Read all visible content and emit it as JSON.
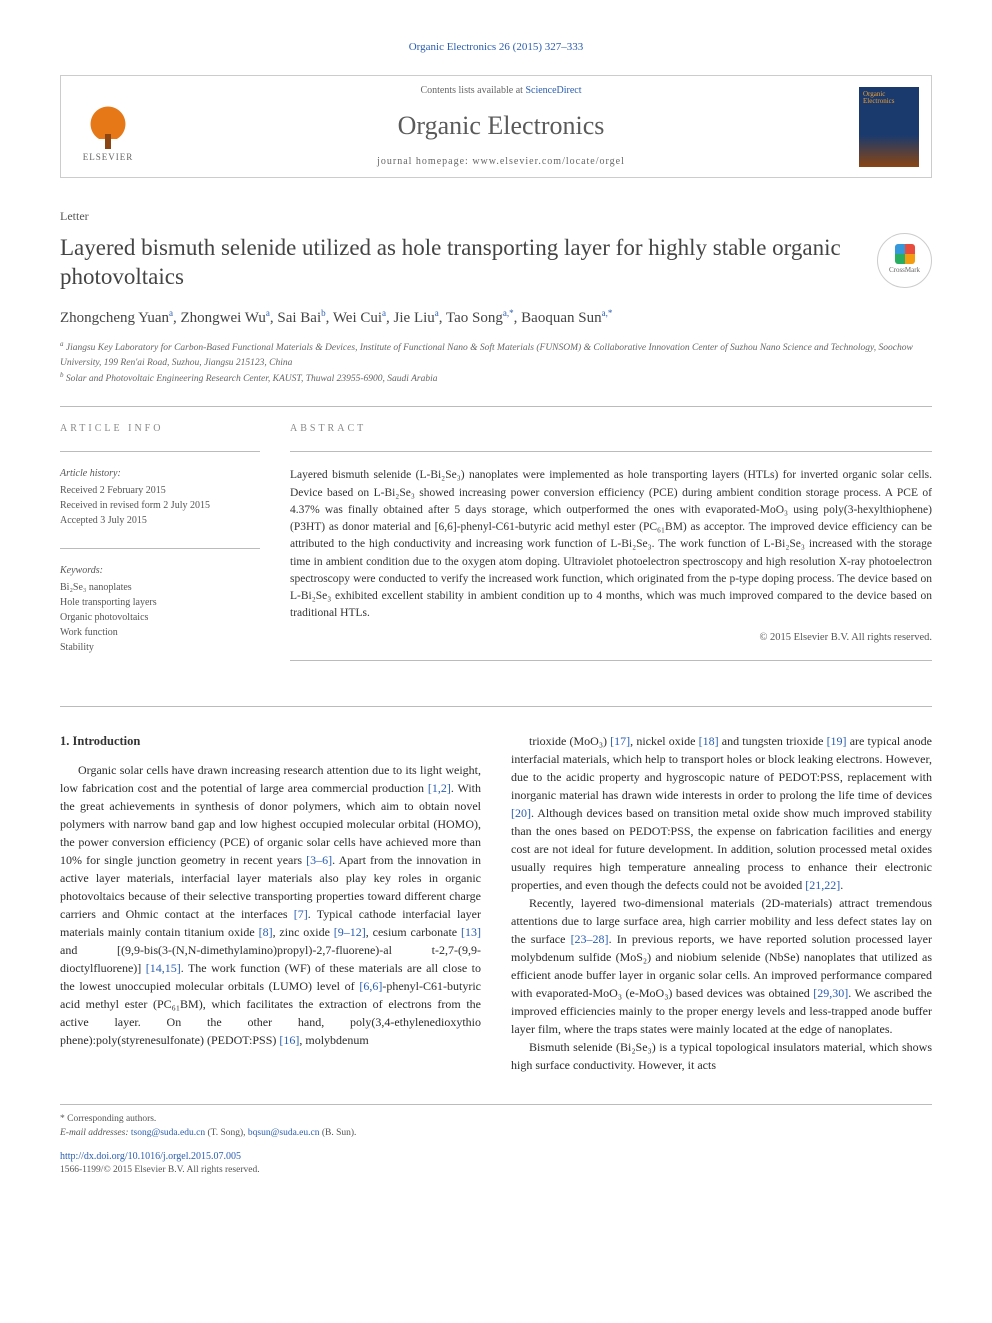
{
  "citation": "Organic Electronics 26 (2015) 327–333",
  "header": {
    "contents_prefix": "Contents lists available at ",
    "contents_link": "ScienceDirect",
    "journal_name": "Organic Electronics",
    "homepage_prefix": "journal homepage: ",
    "homepage_url": "www.elsevier.com/locate/orgel",
    "publisher": "ELSEVIER",
    "cover_text": "Organic Electronics"
  },
  "article_type": "Letter",
  "title": "Layered bismuth selenide utilized as hole transporting layer for highly stable organic photovoltaics",
  "crossmark_label": "CrossMark",
  "authors_html": "Zhongcheng Yuan<sup>a</sup>, Zhongwei Wu<sup>a</sup>, Sai Bai<sup>b</sup>, Wei Cui<sup>a</sup>, Jie Liu<sup>a</sup>, Tao Song<sup>a,*</sup>, Baoquan Sun<sup>a,*</sup>",
  "affiliations": {
    "a": "Jiangsu Key Laboratory for Carbon-Based Functional Materials & Devices, Institute of Functional Nano & Soft Materials (FUNSOM) & Collaborative Innovation Center of Suzhou Nano Science and Technology, Soochow University, 199 Ren'ai Road, Suzhou, Jiangsu 215123, China",
    "b": "Solar and Photovoltaic Engineering Research Center, KAUST, Thuwal 23955-6900, Saudi Arabia"
  },
  "info": {
    "heading": "ARTICLE INFO",
    "history_label": "Article history:",
    "received": "Received 2 February 2015",
    "revised": "Received in revised form 2 July 2015",
    "accepted": "Accepted 3 July 2015",
    "keywords_label": "Keywords:",
    "keywords": [
      "Bi₂Se₃ nanoplates",
      "Hole transporting layers",
      "Organic photovoltaics",
      "Work function",
      "Stability"
    ]
  },
  "abstract": {
    "heading": "ABSTRACT",
    "text": "Layered bismuth selenide (L-Bi₂Se₃) nanoplates were implemented as hole transporting layers (HTLs) for inverted organic solar cells. Device based on L-Bi₂Se₃ showed increasing power conversion efficiency (PCE) during ambient condition storage process. A PCE of 4.37% was finally obtained after 5 days storage, which outperformed the ones with evaporated-MoO₃ using poly(3-hexylthiophene) (P3HT) as donor material and [6,6]-phenyl-C61-butyric acid methyl ester (PC₆₁BM) as acceptor. The improved device efficiency can be attributed to the high conductivity and increasing work function of L-Bi₂Se₃. The work function of L-Bi₂Se₃ increased with the storage time in ambient condition due to the oxygen atom doping. Ultraviolet photoelectron spectroscopy and high resolution X-ray photoelectron spectroscopy were conducted to verify the increased work function, which originated from the p-type doping process. The device based on L-Bi₂Se₃ exhibited excellent stability in ambient condition up to 4 months, which was much improved compared to the device based on traditional HTLs.",
    "copyright": "© 2015 Elsevier B.V. All rights reserved."
  },
  "body": {
    "section1_heading": "1. Introduction",
    "para1": "Organic solar cells have drawn increasing research attention due to its light weight, low fabrication cost and the potential of large area commercial production [1,2]. With the great achievements in synthesis of donor polymers, which aim to obtain novel polymers with narrow band gap and low highest occupied molecular orbital (HOMO), the power conversion efficiency (PCE) of organic solar cells have achieved more than 10% for single junction geometry in recent years [3–6]. Apart from the innovation in active layer materials, interfacial layer materials also play key roles in organic photovoltaics because of their selective transporting properties toward different charge carriers and Ohmic contact at the interfaces [7]. Typical cathode interfacial layer materials mainly contain titanium oxide [8], zinc oxide [9–12], cesium carbonate [13] and [(9,9-bis(3-(N,N-dimethylamino)propyl)-2,7-fluorene)-al t-2,7-(9,9-dioctylfluorene)] [14,15]. The work function (WF) of these materials are all close to the lowest unoccupied molecular orbitals (LUMO) level of [6,6]-phenyl-C61-butyric acid methyl ester (PC₆₁BM), which facilitates the extraction of electrons from the active layer. On the other hand, poly(3,4-ethylenedioxythio phene):poly(styrenesulfonate) (PEDOT:PSS) [16], molybdenum",
    "para2": "trioxide (MoO₃) [17], nickel oxide [18] and tungsten trioxide [19] are typical anode interfacial materials, which help to transport holes or block leaking electrons. However, due to the acidic property and hygroscopic nature of PEDOT:PSS, replacement with inorganic material has drawn wide interests in order to prolong the life time of devices [20]. Although devices based on transition metal oxide show much improved stability than the ones based on PEDOT:PSS, the expense on fabrication facilities and energy cost are not ideal for future development. In addition, solution processed metal oxides usually requires high temperature annealing process to enhance their electronic properties, and even though the defects could not be avoided [21,22].",
    "para3": "Recently, layered two-dimensional materials (2D-materials) attract tremendous attentions due to large surface area, high carrier mobility and less defect states lay on the surface [23–28]. In previous reports, we have reported solution processed layer molybdenum sulfide (MoS₂) and niobium selenide (NbSe) nanoplates that utilized as efficient anode buffer layer in organic solar cells. An improved performance compared with evaporated-MoO₃ (e-MoO₃) based devices was obtained [29,30]. We ascribed the improved efficiencies mainly to the proper energy levels and less-trapped anode buffer layer film, where the traps states were mainly located at the edge of nanoplates.",
    "para4": "Bismuth selenide (Bi₂Se₃) is a typical topological insulators material, which shows high surface conductivity. However, it acts"
  },
  "footer": {
    "corresponding_label": "* Corresponding authors.",
    "email_label": "E-mail addresses: ",
    "email1": "tsong@suda.edu.cn",
    "email1_name": " (T. Song), ",
    "email2": "bqsun@suda.eu.cn",
    "email2_name": " (B. Sun).",
    "doi": "http://dx.doi.org/10.1016/j.orgel.2015.07.005",
    "issn_copyright": "1566-1199/© 2015 Elsevier B.V. All rights reserved."
  },
  "colors": {
    "link": "#2a5db0",
    "elsevier_orange": "#e67817",
    "text": "#2b2b2b",
    "muted": "#666666"
  }
}
